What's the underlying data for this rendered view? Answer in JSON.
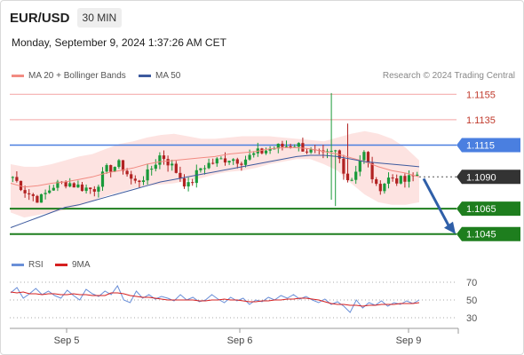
{
  "header": {
    "pair": "EUR/USD",
    "timeframe": "30 MIN",
    "datetime": "Monday, September 9, 2024 1:37:26 AM CET"
  },
  "legend": {
    "ma20": "MA 20 + Bollinger Bands",
    "ma50": "MA 50",
    "rsi": "RSI",
    "ma9": "9MA"
  },
  "credit": "Research © 2024 Trading Central",
  "colors": {
    "up": "#1a9a3a",
    "down": "#b22222",
    "ma20": "#f28b82",
    "ma50": "#3d5a9e",
    "support": "#1e7e1e",
    "pivot": "#4a7fe0",
    "resistance": "#f4a3a3",
    "price": "#333333",
    "band": "#fde3e1",
    "rsi": "#6a8fd8",
    "rsima": "#d62020",
    "arrow": "#2f5fa8"
  },
  "chart_data": [
    {
      "type": "candlestick",
      "ylim": [
        1.1035,
        1.1165
      ],
      "x_ticks": [
        "Sep 5",
        "Sep 6",
        "Sep 9"
      ],
      "levels": [
        {
          "label": "1.1155",
          "value": 1.1155,
          "kind": "resistance"
        },
        {
          "label": "1.1135",
          "value": 1.1135,
          "kind": "resistance"
        },
        {
          "label": "1.1115",
          "value": 1.1115,
          "kind": "pivot"
        },
        {
          "label": "1.1090",
          "value": 1.109,
          "kind": "price"
        },
        {
          "label": "1.1065",
          "value": 1.1065,
          "kind": "support"
        },
        {
          "label": "1.1045",
          "value": 1.1045,
          "kind": "support"
        }
      ],
      "target_arrow": {
        "from": 1.109,
        "to": 1.1045
      },
      "anchors": [
        1.109,
        1.1078,
        1.1072,
        1.1083,
        1.1086,
        1.1082,
        1.108,
        1.1096,
        1.11,
        1.1085,
        1.1092,
        1.1108,
        1.1096,
        1.1082,
        1.1098,
        1.1102,
        1.1105,
        1.1103,
        1.1108,
        1.1112,
        1.1114,
        1.1116,
        1.111,
        1.1106,
        1.111,
        1.1085,
        1.111,
        1.108,
        1.109,
        1.1086,
        1.1092
      ],
      "ma20": [
        1.1085,
        1.1082,
        1.1083,
        1.1085,
        1.1086,
        1.1088,
        1.109,
        1.1093,
        1.1095,
        1.1097,
        1.11,
        1.1102,
        1.1103,
        1.1104,
        1.1105,
        1.1106,
        1.1108,
        1.1109,
        1.111,
        1.1112,
        1.1113,
        1.1113,
        1.1112,
        1.111,
        1.1108,
        1.1105,
        1.1102,
        1.1098,
        1.1095,
        1.1093,
        1.109
      ],
      "ma50": [
        1.105,
        1.1054,
        1.1058,
        1.1062,
        1.1066,
        1.1068,
        1.1071,
        1.1074,
        1.1077,
        1.108,
        1.1083,
        1.1086,
        1.1088,
        1.109,
        1.1092,
        1.1094,
        1.1096,
        1.1098,
        1.11,
        1.1102,
        1.1104,
        1.1106,
        1.1107,
        1.1107,
        1.1106,
        1.1104,
        1.1102,
        1.1101,
        1.11,
        1.1099,
        1.1098
      ],
      "band_upper": [
        1.11,
        1.1098,
        1.1098,
        1.11,
        1.1103,
        1.1106,
        1.1108,
        1.1112,
        1.1116,
        1.1118,
        1.1121,
        1.1123,
        1.1124,
        1.1122,
        1.112,
        1.112,
        1.1121,
        1.1122,
        1.1122,
        1.1122,
        1.1121,
        1.112,
        1.1119,
        1.1118,
        1.1121,
        1.1124,
        1.1126,
        1.1124,
        1.112,
        1.1113,
        1.1103
      ],
      "band_lower": [
        1.1062,
        1.1058,
        1.106,
        1.1062,
        1.1064,
        1.1067,
        1.1071,
        1.1075,
        1.1078,
        1.1081,
        1.1083,
        1.1084,
        1.1085,
        1.1087,
        1.1089,
        1.1092,
        1.1094,
        1.1095,
        1.1097,
        1.11,
        1.1102,
        1.1104,
        1.1104,
        1.11,
        1.1095,
        1.1085,
        1.1076,
        1.107,
        1.1068,
        1.1068,
        1.107
      ]
    },
    {
      "type": "line",
      "title": "RSI",
      "ylim": [
        20,
        80
      ],
      "y_ticks": [
        70,
        50,
        30
      ],
      "rsi": [
        58,
        64,
        52,
        57,
        63,
        56,
        60,
        55,
        52,
        61,
        55,
        50,
        62,
        57,
        54,
        60,
        56,
        66,
        50,
        47,
        60,
        52,
        56,
        51,
        54,
        52,
        49,
        56,
        50,
        53,
        48,
        50,
        56,
        51,
        47,
        53,
        49,
        52,
        45,
        50,
        48,
        53,
        50,
        55,
        52,
        56,
        51,
        54,
        50,
        47,
        51,
        45,
        48,
        43,
        36,
        50,
        41,
        47,
        44,
        49,
        43,
        47,
        45,
        49,
        46,
        50
      ],
      "ma9": [
        59,
        58,
        59,
        57,
        57,
        56,
        57,
        57,
        56,
        56,
        57,
        56,
        56,
        55,
        55,
        55,
        58,
        58,
        57,
        55,
        54,
        53,
        53,
        52,
        51,
        50,
        50,
        50,
        50,
        50,
        49,
        49,
        50,
        50,
        51,
        50,
        50,
        49,
        48,
        48,
        49,
        49,
        50,
        50,
        51,
        51,
        52,
        52,
        51,
        50,
        48,
        46,
        45,
        45,
        44,
        44,
        43,
        44,
        44,
        45,
        45,
        45,
        46,
        46,
        46,
        47
      ]
    }
  ]
}
